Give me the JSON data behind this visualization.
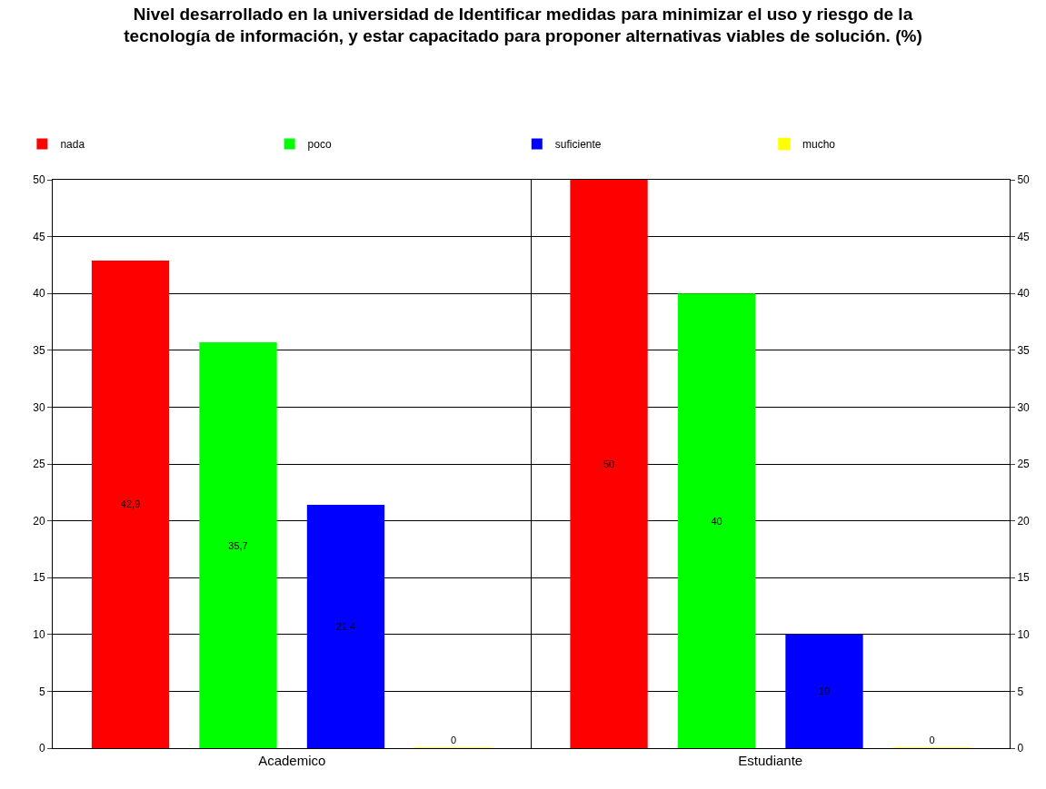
{
  "chart_data": {
    "type": "bar",
    "title": "Nivel desarrollado en la universidad de Identificar medidas para minimizar el uso y riesgo de la tecnología de información, y estar capacitado para proponer alternativas viables de solución. (%)",
    "categories": [
      "Academico",
      "Estudiante"
    ],
    "series": [
      {
        "name": "nada",
        "color": "#ff0000",
        "values": [
          42.9,
          50
        ],
        "value_labels": [
          "42,9",
          "50"
        ]
      },
      {
        "name": "poco",
        "color": "#00ff00",
        "values": [
          35.7,
          40
        ],
        "value_labels": [
          "35,7",
          "40"
        ]
      },
      {
        "name": "suficiente",
        "color": "#0000ff",
        "values": [
          21.4,
          10
        ],
        "value_labels": [
          "21,4",
          "10"
        ]
      },
      {
        "name": "mucho",
        "color": "#ffff00",
        "values": [
          0,
          0
        ],
        "value_labels": [
          "0",
          "0"
        ]
      }
    ],
    "ylim": [
      0,
      50
    ],
    "yticks": [
      0,
      5,
      10,
      15,
      20,
      25,
      30,
      35,
      40,
      45,
      50
    ],
    "y2lim": [
      0,
      50
    ],
    "y2ticks": [
      0,
      5,
      10,
      15,
      20,
      25,
      30,
      35,
      40,
      45,
      50
    ],
    "grid": true,
    "legend": "top"
  }
}
